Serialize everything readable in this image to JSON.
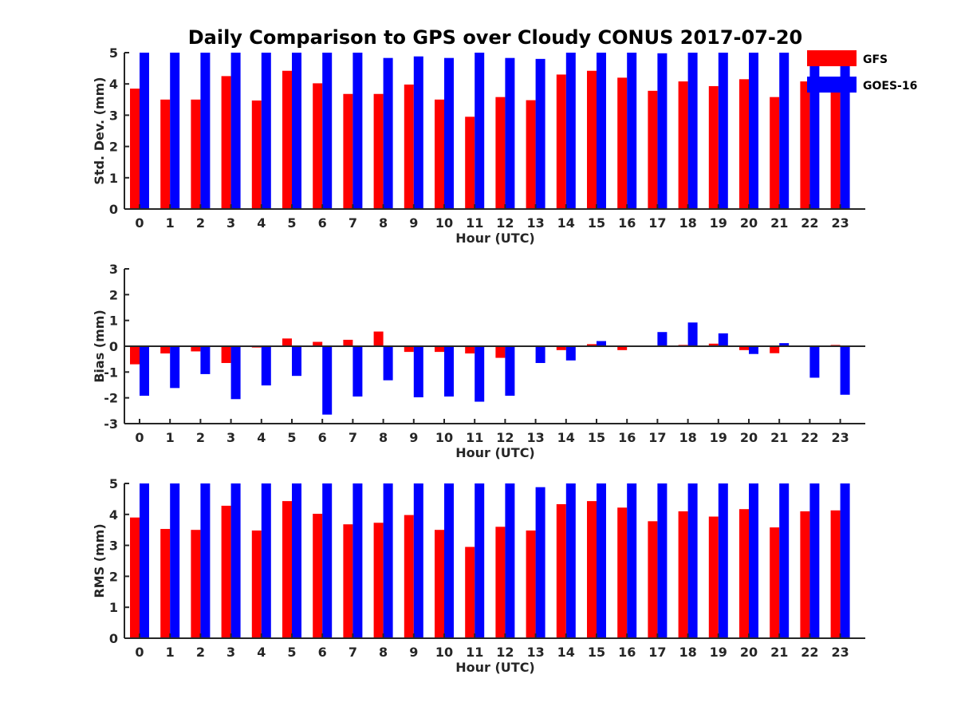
{
  "title": "Daily Comparison to GPS over Cloudy CONUS 2017-07-20",
  "legend": [
    {
      "name": "GFS",
      "color": "#ff0000"
    },
    {
      "name": "GOES-16",
      "color": "#0000ff"
    }
  ],
  "chart_data": [
    {
      "type": "bar",
      "title": "Daily Comparison to GPS over Cloudy CONUS 2017-07-20",
      "xlabel": "Hour (UTC)",
      "ylabel": "Std. Dev. (mm)",
      "ylim": [
        0,
        5
      ],
      "yticks": [
        0,
        1,
        2,
        3,
        4,
        5
      ],
      "categories": [
        "0",
        "1",
        "2",
        "3",
        "4",
        "5",
        "6",
        "7",
        "8",
        "9",
        "10",
        "11",
        "12",
        "13",
        "14",
        "15",
        "16",
        "17",
        "18",
        "19",
        "20",
        "21",
        "22",
        "23"
      ],
      "series": [
        {
          "name": "GFS",
          "color": "#ff0000",
          "values": [
            3.85,
            3.5,
            3.5,
            4.25,
            3.47,
            4.42,
            4.02,
            3.68,
            3.68,
            3.98,
            3.5,
            2.95,
            3.58,
            3.48,
            4.3,
            4.42,
            4.2,
            3.78,
            4.08,
            3.93,
            4.15,
            3.58,
            4.08,
            3.9
          ]
        },
        {
          "name": "GOES-16",
          "color": "#0000ff",
          "values": [
            5,
            5,
            5,
            5,
            5,
            5,
            5,
            5,
            4.83,
            4.88,
            4.83,
            5,
            4.83,
            4.8,
            5,
            5,
            5,
            4.98,
            5,
            5,
            5,
            5,
            5,
            5
          ]
        }
      ],
      "grid": false,
      "legend_position": "top-right"
    },
    {
      "type": "bar",
      "xlabel": "Hour (UTC)",
      "ylabel": "Bias (mm)",
      "ylim": [
        -3,
        3
      ],
      "yticks": [
        -3,
        -2,
        -1,
        0,
        1,
        2,
        3
      ],
      "categories": [
        "0",
        "1",
        "2",
        "3",
        "4",
        "5",
        "6",
        "7",
        "8",
        "9",
        "10",
        "11",
        "12",
        "13",
        "14",
        "15",
        "16",
        "17",
        "18",
        "19",
        "20",
        "21",
        "22",
        "23"
      ],
      "series": [
        {
          "name": "GFS",
          "color": "#ff0000",
          "values": [
            -0.7,
            -0.28,
            -0.2,
            -0.65,
            -0.05,
            0.3,
            0.17,
            0.25,
            0.57,
            -0.22,
            -0.22,
            -0.28,
            -0.45,
            0.0,
            -0.15,
            0.08,
            -0.15,
            -0.03,
            0.05,
            0.1,
            -0.15,
            -0.27,
            0.0,
            0.05
          ]
        },
        {
          "name": "GOES-16",
          "color": "#0000ff",
          "values": [
            -1.92,
            -1.62,
            -1.08,
            -2.05,
            -1.52,
            -1.15,
            -2.65,
            -1.95,
            -1.32,
            -1.98,
            -1.95,
            -2.15,
            -1.92,
            -0.65,
            -0.55,
            0.2,
            0.0,
            0.55,
            0.92,
            0.5,
            -0.3,
            0.12,
            -1.22,
            -1.88
          ]
        }
      ],
      "grid": false
    },
    {
      "type": "bar",
      "xlabel": "Hour (UTC)",
      "ylabel": "RMS (mm)",
      "ylim": [
        0,
        5
      ],
      "yticks": [
        0,
        1,
        2,
        3,
        4,
        5
      ],
      "categories": [
        "0",
        "1",
        "2",
        "3",
        "4",
        "5",
        "6",
        "7",
        "8",
        "9",
        "10",
        "11",
        "12",
        "13",
        "14",
        "15",
        "16",
        "17",
        "18",
        "19",
        "20",
        "21",
        "22",
        "23"
      ],
      "series": [
        {
          "name": "GFS",
          "color": "#ff0000",
          "values": [
            3.9,
            3.53,
            3.5,
            4.28,
            3.48,
            4.43,
            4.02,
            3.68,
            3.73,
            3.98,
            3.5,
            2.95,
            3.6,
            3.48,
            4.33,
            4.43,
            4.22,
            3.78,
            4.1,
            3.93,
            4.17,
            3.58,
            4.1,
            4.13
          ]
        },
        {
          "name": "GOES-16",
          "color": "#0000ff",
          "values": [
            5,
            5,
            5,
            5,
            5,
            5,
            5,
            5,
            5,
            5,
            5,
            5,
            5,
            4.88,
            5,
            5,
            5,
            5,
            5,
            5,
            5,
            5,
            5,
            5
          ]
        }
      ],
      "grid": false
    }
  ]
}
